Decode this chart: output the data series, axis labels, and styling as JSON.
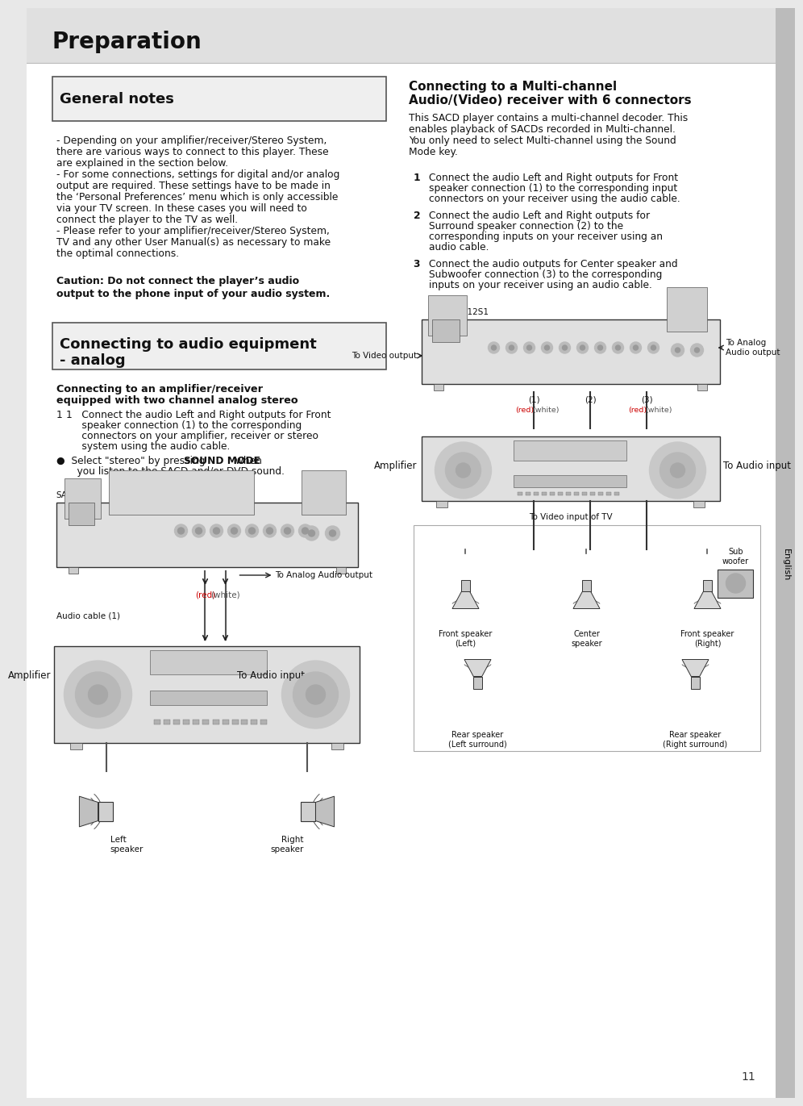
{
  "page_bg": "#e8e8e8",
  "content_bg": "#ffffff",
  "title": "Preparation",
  "page_number": "11",
  "sidebar_label": "English",
  "general_notes_title": "General notes",
  "general_notes_text_lines": [
    "- Depending on your amplifier/receiver/Stereo System,",
    "there are various ways to connect to this player. These",
    "are explained in the section below.",
    "- For some connections, settings for digital and/or analog",
    "output are required. These settings have to be made in",
    "the ‘Personal Preferences’ menu which is only accessible",
    "via your TV screen. In these cases you will need to",
    "connect the player to the TV as well.",
    "- Please refer to your amplifier/receiver/Stereo System,",
    "TV and any other User Manual(s) as necessary to make",
    "the optimal connections."
  ],
  "caution_line1": "Caution: Do not connect the player’s audio",
  "caution_line2": "output to the phone input of your audio system.",
  "analog_title_line1": "Connecting to audio equipment",
  "analog_title_line2": "- analog",
  "analog_sub_line1": "Connecting to an amplifier/receiver",
  "analog_sub_line2": "equipped with two channel analog stereo",
  "analog_step1_lines": [
    "1   Connect the audio Left and Right outputs for Front",
    "     speaker connection (1) to the corresponding",
    "     connectors on your amplifier, receiver or stereo",
    "     system using the audio cable."
  ],
  "analog_bullet_lines": [
    "●  Select \"stereo\" by pressing SOUND MODE when",
    "    you listen to the SACD and/or DVD sound."
  ],
  "analog_sound_mode_word": "SOUND MODE",
  "diagram_left_label": "SA-12S1",
  "to_analog_audio": "To Analog Audio output",
  "red_label": "(red)",
  "white_label": "(white)",
  "audio_cable_label": "Audio cable (1)",
  "amplifier_label": "Amplifier",
  "to_audio_input": "To Audio input",
  "left_speaker_label": "Left\nspeaker",
  "right_speaker_label": "Right\nspeaker",
  "mc_title_line1": "Connecting to a Multi-channel",
  "mc_title_line2": "Audio/(Video) receiver with 6 connectors",
  "mc_intro_lines": [
    "This SACD player contains a multi-channel decoder. This",
    "enables playback of SACDs recorded in Multi-channel.",
    "You only need to select Multi-channel using the Sound",
    "Mode key."
  ],
  "mc_step1_lines": [
    "Connect the audio Left and Right outputs for Front",
    "speaker connection (1) to the corresponding input",
    "connectors on your receiver using the audio cable."
  ],
  "mc_step2_lines": [
    "Connect the audio Left and Right outputs for",
    "Surround speaker connection (2) to the",
    "corresponding inputs on your receiver using an",
    "audio cable."
  ],
  "mc_step3_lines": [
    "Connect the audio outputs for Center speaker and",
    "Subwoofer connection (3) to the corresponding",
    "inputs on your receiver using an audio cable."
  ],
  "sa12s1_label": "SA-12S1",
  "conn1_label": "(1)",
  "conn2_label": "(2)",
  "conn3_label": "(3)",
  "to_video_output": "To Video output",
  "to_analog_audio_output": "To Analog\nAudio output",
  "red1": "(red)",
  "white1": "(white)",
  "red2": "(red)",
  "white2": "(white)",
  "amplifier2_label": "Amplifier",
  "to_audio_input2": "To Audio input",
  "to_video_tv": "To Video input of TV",
  "front_left_label": "Front speaker\n(Left)",
  "center_label": "Center\nspeaker",
  "front_right_label": "Front speaker\n(Right)",
  "sub_label": "Sub\nwoofer",
  "rear_left_label": "Rear speaker\n(Left surround)",
  "rear_right_label": "Rear speaker\n(Right surround)"
}
